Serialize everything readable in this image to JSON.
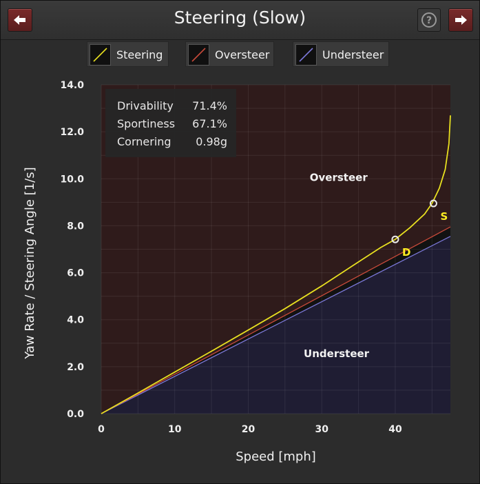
{
  "window": {
    "title": "Steering (Slow)"
  },
  "legend": [
    {
      "label": "Steering",
      "color": "#e8e020"
    },
    {
      "label": "Oversteer",
      "color": "#c84a3a"
    },
    {
      "label": "Understeer",
      "color": "#7b78d8"
    }
  ],
  "stats": [
    {
      "name": "Drivability",
      "value": "71.4%"
    },
    {
      "name": "Sportiness",
      "value": "67.1%"
    },
    {
      "name": "Cornering",
      "value": "0.98g"
    }
  ],
  "chart_data": {
    "type": "line",
    "xlabel": "Speed [mph]",
    "ylabel": "Yaw Rate / Steering Angle [1/s]",
    "xlim": [
      0,
      47.5
    ],
    "ylim": [
      0,
      14.0
    ],
    "xticks": [
      "0",
      "10",
      "20",
      "30",
      "40"
    ],
    "yticks": [
      "0.0",
      "2.0",
      "4.0",
      "6.0",
      "8.0",
      "10.0",
      "12.0",
      "14.0"
    ],
    "grid": true,
    "regions": {
      "oversteer_label": "Oversteer",
      "understeer_label": "Understeer"
    },
    "series": [
      {
        "name": "Steering",
        "color": "#e8e020",
        "x": [
          0,
          5,
          10,
          15,
          20,
          25,
          30,
          35,
          38,
          40,
          42,
          44,
          45,
          46,
          46.8,
          47.3,
          47.5
        ],
        "y": [
          0,
          0.88,
          1.77,
          2.66,
          3.56,
          4.47,
          5.44,
          6.46,
          7.07,
          7.42,
          7.92,
          8.5,
          8.95,
          9.6,
          10.4,
          11.5,
          12.7
        ]
      },
      {
        "name": "Oversteer",
        "color": "#c84a3a",
        "x": [
          0,
          47.5
        ],
        "y": [
          0,
          7.95
        ]
      },
      {
        "name": "Understeer",
        "color": "#7b78d8",
        "x": [
          0,
          47.5
        ],
        "y": [
          0,
          7.55
        ]
      }
    ],
    "markers": [
      {
        "label": "D",
        "x": 40.0,
        "y": 7.42
      },
      {
        "label": "S",
        "x": 45.2,
        "y": 8.95
      }
    ]
  }
}
